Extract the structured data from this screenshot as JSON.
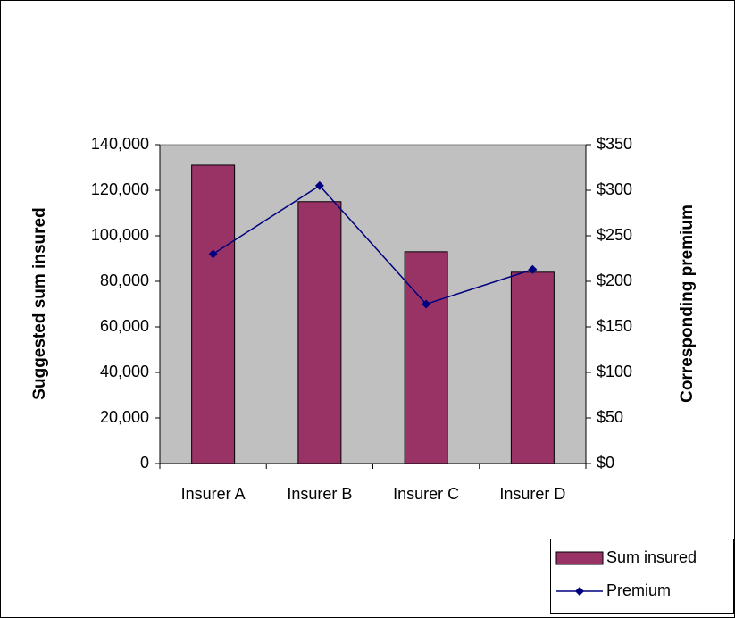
{
  "chart_data": {
    "type": "bar",
    "categories": [
      "Insurer A",
      "Insurer B",
      "Insurer C",
      "Insurer D"
    ],
    "y_label": "Suggested sum insured",
    "y2_label": "Corresponding premium",
    "series": [
      {
        "name": "Sum insured",
        "type": "bar",
        "color": "#993366",
        "values": [
          131000,
          115000,
          93000,
          84000
        ]
      },
      {
        "name": "Premium",
        "type": "line",
        "axis": "y2",
        "color": "#000080",
        "values": [
          230,
          305,
          175,
          213
        ]
      }
    ],
    "ylim": [
      0,
      140000
    ],
    "yticks": [
      0,
      {
        "value": 20000,
        "label": "20,000"
      },
      {
        "value": 40000,
        "label": "40,000"
      },
      {
        "value": 60000,
        "label": "60,000"
      },
      {
        "value": 80000,
        "label": "80,000"
      },
      {
        "value": 100000,
        "label": "100,000"
      },
      {
        "value": 120000,
        "label": "120,000"
      },
      {
        "value": 140000,
        "label": "140,000"
      }
    ],
    "y2lim": [
      0,
      350
    ],
    "y2ticks": [
      {
        "value": 0,
        "label": "$0"
      },
      {
        "value": 50,
        "label": "$50"
      },
      {
        "value": 100,
        "label": "$100"
      },
      {
        "value": 150,
        "label": "$150"
      },
      {
        "value": 200,
        "label": "$200"
      },
      {
        "value": 250,
        "label": "$250"
      },
      {
        "value": 300,
        "label": "$300"
      },
      {
        "value": 350,
        "label": "$350"
      }
    ],
    "plot_background": "#c0c0c0",
    "legend": "bottom-right"
  }
}
